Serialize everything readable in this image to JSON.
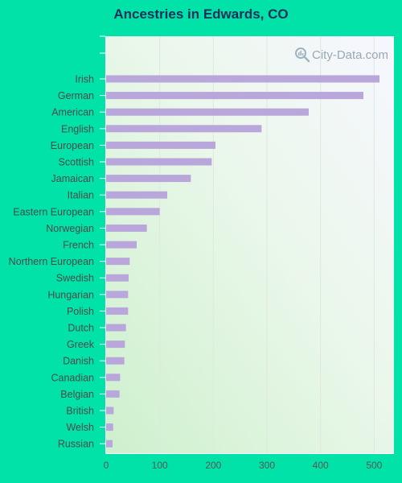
{
  "title": "Ancestries in Edwards, CO",
  "watermark": {
    "text": "City-Data.com",
    "icon": "magnifier-icon"
  },
  "colors": {
    "background": "#00e2a8",
    "bar": "#b9a6db",
    "title": "#17305a"
  },
  "chart_data": {
    "type": "bar",
    "orientation": "horizontal",
    "title": "Ancestries in Edwards, CO",
    "xlabel": "",
    "ylabel": "",
    "xlim": [
      0,
      540
    ],
    "xticks": [
      0,
      100,
      200,
      300,
      400,
      500
    ],
    "grid": true,
    "categories": [
      "Irish",
      "German",
      "American",
      "English",
      "European",
      "Scottish",
      "Jamaican",
      "Italian",
      "Eastern European",
      "Norwegian",
      "French",
      "Northern European",
      "Swedish",
      "Hungarian",
      "Polish",
      "Dutch",
      "Greek",
      "Danish",
      "Canadian",
      "Belgian",
      "British",
      "Welsh",
      "Russian"
    ],
    "values": [
      510,
      480,
      378,
      290,
      204,
      197,
      158,
      114,
      100,
      76,
      57,
      44,
      42,
      41,
      41,
      37,
      35,
      34,
      26,
      25,
      14,
      13,
      12
    ]
  }
}
